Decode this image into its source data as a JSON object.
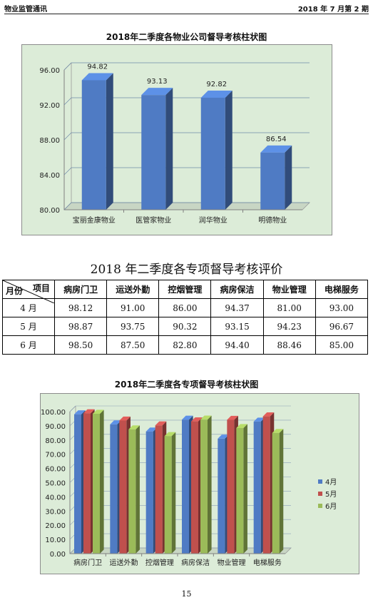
{
  "header": {
    "left": "物业监管通讯",
    "right": "2018 年 7 月第 2 期"
  },
  "chart1_title": "2018年二季度各物业公司督导考核柱状图",
  "table_title": "2018 年二季度各专项督导考核评价",
  "chart2_title": "2018年二季度各专项督导考核柱状图",
  "table": {
    "corner_item": "项目",
    "corner_month": "月份",
    "columns": [
      "病房门卫",
      "运送外勤",
      "控烟管理",
      "病房保洁",
      "物业管理",
      "电梯服务"
    ],
    "rows": [
      {
        "month": "4 月",
        "values": [
          "98.12",
          "91.00",
          "86.00",
          "94.37",
          "81.00",
          "93.00"
        ]
      },
      {
        "month": "5 月",
        "values": [
          "98.87",
          "93.75",
          "90.32",
          "93.15",
          "94.23",
          "96.67"
        ]
      },
      {
        "month": "6 月",
        "values": [
          "98.50",
          "87.50",
          "82.80",
          "94.40",
          "88.46",
          "85.00"
        ]
      }
    ]
  },
  "page_number": "15",
  "chart_data": [
    {
      "type": "bar",
      "title": "2018年二季度各物业公司督导考核柱状图",
      "categories": [
        "宝丽金康物业",
        "医管家物业",
        "润华物业",
        "明德物业"
      ],
      "values": [
        94.82,
        93.13,
        92.82,
        86.54
      ],
      "value_labels": [
        "94.82",
        "93.13",
        "92.82",
        "86.54"
      ],
      "ylim": [
        80,
        96
      ],
      "yticks": [
        "80.00",
        "84.00",
        "88.00",
        "92.00",
        "96.00"
      ],
      "grid": true,
      "colors": {
        "bar": "#4f7bc4",
        "plot_bg": "#dcecd8"
      }
    },
    {
      "type": "bar",
      "title": "2018年二季度各专项督导考核柱状图",
      "categories": [
        "病房门卫",
        "运送外勤",
        "控烟管理",
        "病房保洁",
        "物业管理",
        "电梯服务"
      ],
      "series": [
        {
          "name": "4月",
          "values": [
            98.12,
            91.0,
            86.0,
            94.37,
            81.0,
            93.0
          ],
          "color": "#4f7bc4"
        },
        {
          "name": "5月",
          "values": [
            98.87,
            93.75,
            90.32,
            93.15,
            94.23,
            96.67
          ],
          "color": "#c0504d"
        },
        {
          "name": "6月",
          "values": [
            98.5,
            87.5,
            82.8,
            94.4,
            88.46,
            85.0
          ],
          "color": "#9bbb59"
        }
      ],
      "ylim": [
        0,
        100
      ],
      "yticks": [
        "0.00",
        "10.00",
        "20.00",
        "30.00",
        "40.00",
        "50.00",
        "60.00",
        "70.00",
        "80.00",
        "90.00",
        "100.00"
      ],
      "grid": true,
      "legend": "right",
      "colors": {
        "plot_bg": "#dcecd8"
      }
    }
  ]
}
